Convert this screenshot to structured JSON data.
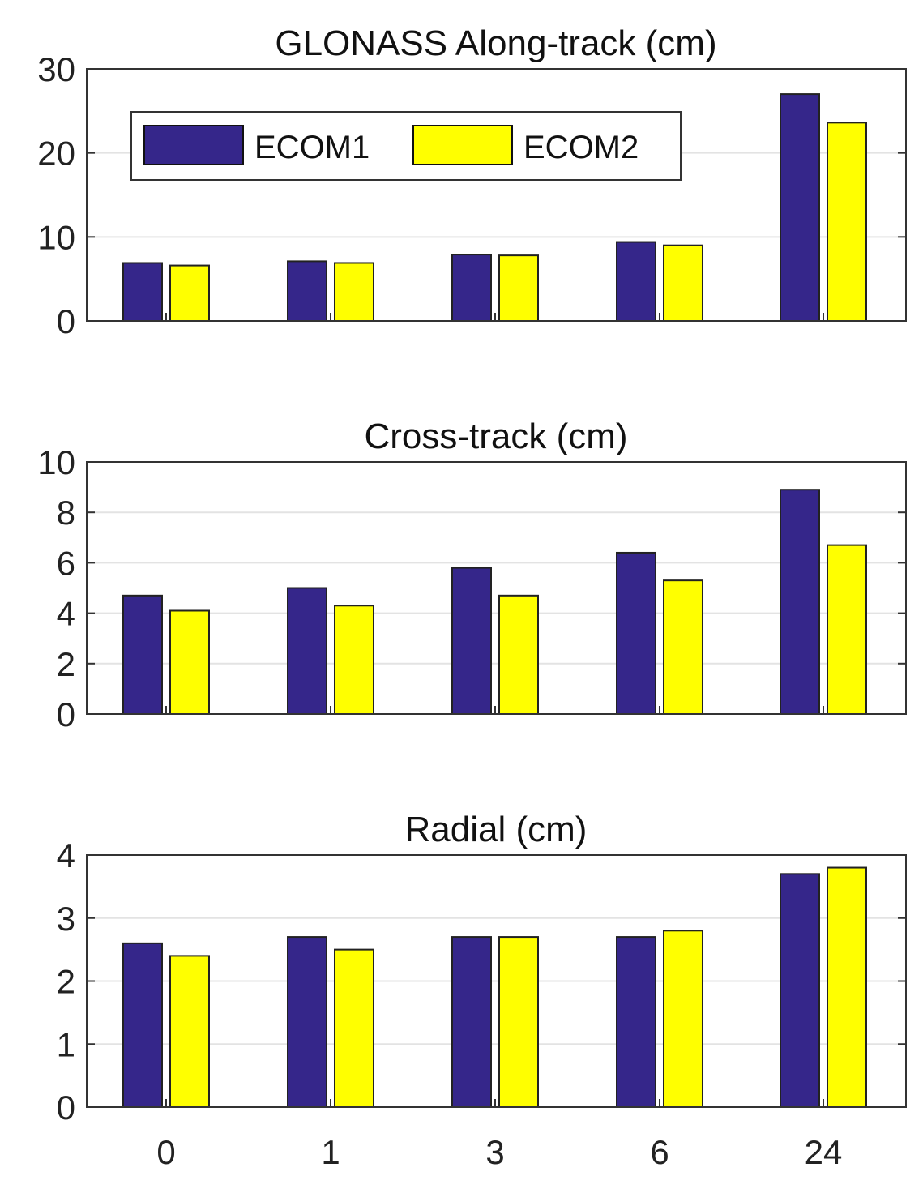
{
  "chart_data": [
    {
      "type": "bar",
      "title": "GLONASS Along-track (cm)",
      "categories": [
        "0",
        "1",
        "3",
        "6",
        "24"
      ],
      "series": [
        {
          "name": "ECOM1",
          "color": "#35268a",
          "values": [
            6.9,
            7.1,
            7.9,
            9.4,
            27.0
          ]
        },
        {
          "name": "ECOM2",
          "color": "#ffff00",
          "values": [
            6.6,
            6.9,
            7.8,
            9.0,
            23.6
          ]
        }
      ],
      "ylim": [
        0,
        30
      ],
      "yticks": [
        0,
        10,
        20,
        30
      ],
      "grid": true,
      "legend": "top-left"
    },
    {
      "type": "bar",
      "title": "Cross-track (cm)",
      "categories": [
        "0",
        "1",
        "3",
        "6",
        "24"
      ],
      "series": [
        {
          "name": "ECOM1",
          "color": "#35268a",
          "values": [
            4.7,
            5.0,
            5.8,
            6.4,
            8.9
          ]
        },
        {
          "name": "ECOM2",
          "color": "#ffff00",
          "values": [
            4.1,
            4.3,
            4.7,
            5.3,
            6.7
          ]
        }
      ],
      "ylim": [
        0,
        10
      ],
      "yticks": [
        0,
        2,
        4,
        6,
        8,
        10
      ],
      "grid": true
    },
    {
      "type": "bar",
      "title": "Radial (cm)",
      "categories": [
        "0",
        "1",
        "3",
        "6",
        "24"
      ],
      "series": [
        {
          "name": "ECOM1",
          "color": "#35268a",
          "values": [
            2.6,
            2.7,
            2.7,
            2.7,
            3.7
          ]
        },
        {
          "name": "ECOM2",
          "color": "#ffff00",
          "values": [
            2.4,
            2.5,
            2.7,
            2.8,
            3.8
          ]
        }
      ],
      "ylim": [
        0,
        4
      ],
      "yticks": [
        0,
        1,
        2,
        3,
        4
      ],
      "grid": true
    }
  ],
  "legend": {
    "entries": [
      {
        "label": "ECOM1",
        "color": "#35268a"
      },
      {
        "label": "ECOM2",
        "color": "#ffff00"
      }
    ]
  }
}
